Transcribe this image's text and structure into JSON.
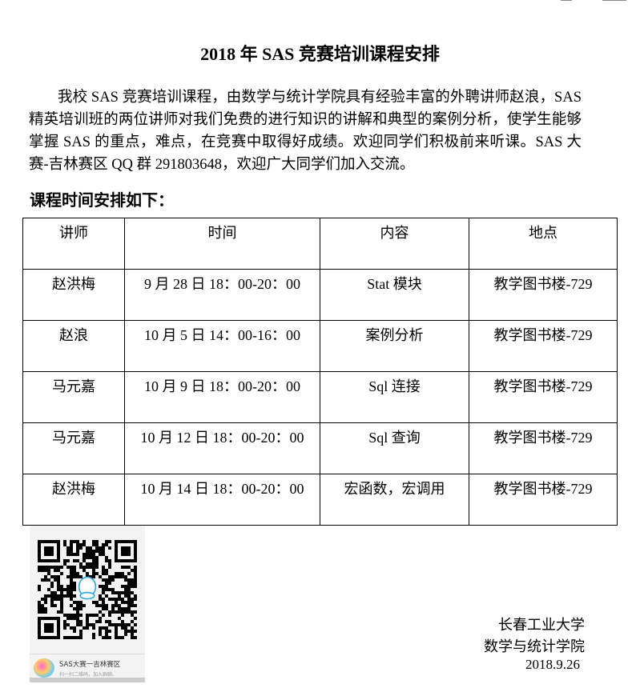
{
  "title": "2018 年 SAS 竞赛培训课程安排",
  "intro": "我校 SAS 竞赛培训课程，由数学与统计学院具有经验丰富的外聘讲师赵浪，SAS 精英培训班的两位讲师对我们免费的进行知识的讲解和典型的案例分析，使学生能够掌握 SAS 的重点，难点，在竞赛中取得好成绩。欢迎同学们积极前来听课。SAS 大赛-吉林赛区 QQ 群 291803648，欢迎广大同学们加入交流。",
  "schedule_heading": "课程时间安排如下：",
  "table": {
    "headers": [
      "讲师",
      "时间",
      "内容",
      "地点"
    ],
    "rows": [
      [
        "赵洪梅",
        "9 月 28 日 18：00-20：00",
        "Stat 模块",
        "教学图书楼-729"
      ],
      [
        "赵浪",
        "10 月 5 日 14：00-16：00",
        "案例分析",
        "教学图书楼-729"
      ],
      [
        "马元嘉",
        "10 月 9 日 18：00-20：00",
        "Sql 连接",
        "教学图书楼-729"
      ],
      [
        "马元嘉",
        "10 月 12 日 18：00-20：00",
        "Sql 查询",
        "教学图书楼-729"
      ],
      [
        "赵洪梅",
        "10 月 14 日 18：00-20：00",
        "宏函数，宏调用",
        "教学图书楼-729"
      ]
    ]
  },
  "qr_card": {
    "group_name": "SAS大赛一吉林赛区",
    "hint": "扫一扫二维码，加入群聊。",
    "icon": "qq-penguin-icon",
    "accent": "#2fa8e0"
  },
  "signature": {
    "university": "长春工业大学",
    "college": "数学与统计学院",
    "date": "2018.9.26"
  }
}
